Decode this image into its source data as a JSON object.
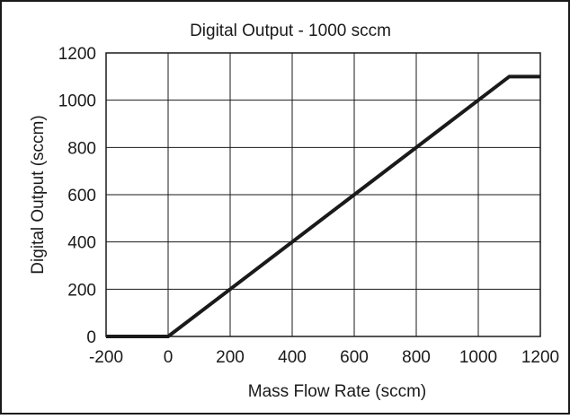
{
  "chart_data": {
    "type": "line",
    "title": "Digital Output -  1000 sccm",
    "xlabel": "Mass Flow Rate (sccm)",
    "ylabel": "Digital Output (sccm)",
    "xlim": [
      -200,
      1200
    ],
    "ylim": [
      0,
      1200
    ],
    "x_ticks": [
      -200,
      0,
      200,
      400,
      600,
      800,
      1000,
      1200
    ],
    "y_ticks": [
      0,
      200,
      400,
      600,
      800,
      1000,
      1200
    ],
    "x_tick_labels": [
      "-200",
      "0",
      "200",
      "400",
      "600",
      "800",
      "1000",
      "1200"
    ],
    "y_tick_labels": [
      "0",
      "200",
      "400",
      "600",
      "800",
      "1000",
      "1200"
    ],
    "grid": true,
    "legend": "none",
    "series": [
      {
        "color": "#1a1a1a",
        "x": [
          -200,
          0,
          1100,
          1200
        ],
        "y": [
          0,
          0,
          1100,
          1100
        ]
      }
    ]
  }
}
